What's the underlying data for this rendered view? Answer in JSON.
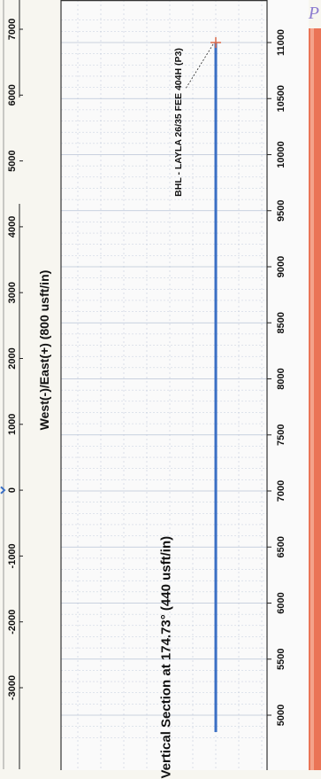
{
  "chart_data": [
    {
      "type": "line",
      "title": "",
      "xlabel": "West(-)/East(+) (800 usft/in)",
      "ylabel": "",
      "x_ticks": [
        -3000,
        -2000,
        -1000,
        0,
        1000,
        2000,
        3000,
        4000,
        5000,
        6000,
        7000
      ],
      "series": [
        {
          "x": [
            -50,
            0,
            50
          ],
          "y": [
            0,
            1,
            0
          ]
        }
      ]
    },
    {
      "type": "line",
      "title": "",
      "xlabel": "Vertical Section at 174.73° (440 usft/in)",
      "ylabel": "",
      "x_ticks": [
        5000,
        5500,
        6000,
        6500,
        7000,
        7500,
        8000,
        8500,
        9000,
        9500,
        10000,
        10500,
        11000
      ],
      "xlim": [
        4850,
        11250
      ],
      "grid": true,
      "series": [
        {
          "x": [
            4850,
            11000
          ],
          "y": [
            0,
            0
          ]
        }
      ],
      "annotations": [
        {
          "text": "BHL - LAYLA 26/35 FEE 404H (P3)",
          "x": 11000,
          "y": 0
        }
      ]
    }
  ],
  "colors": {
    "wellpath": "#3a6fc4",
    "target_marker": "#d96a4a",
    "grid": "#b8c3d6",
    "text": "#111111",
    "right_edge_band": "#e8694a",
    "corner_mark": "#8c7bd0"
  },
  "corner_mark": "P"
}
